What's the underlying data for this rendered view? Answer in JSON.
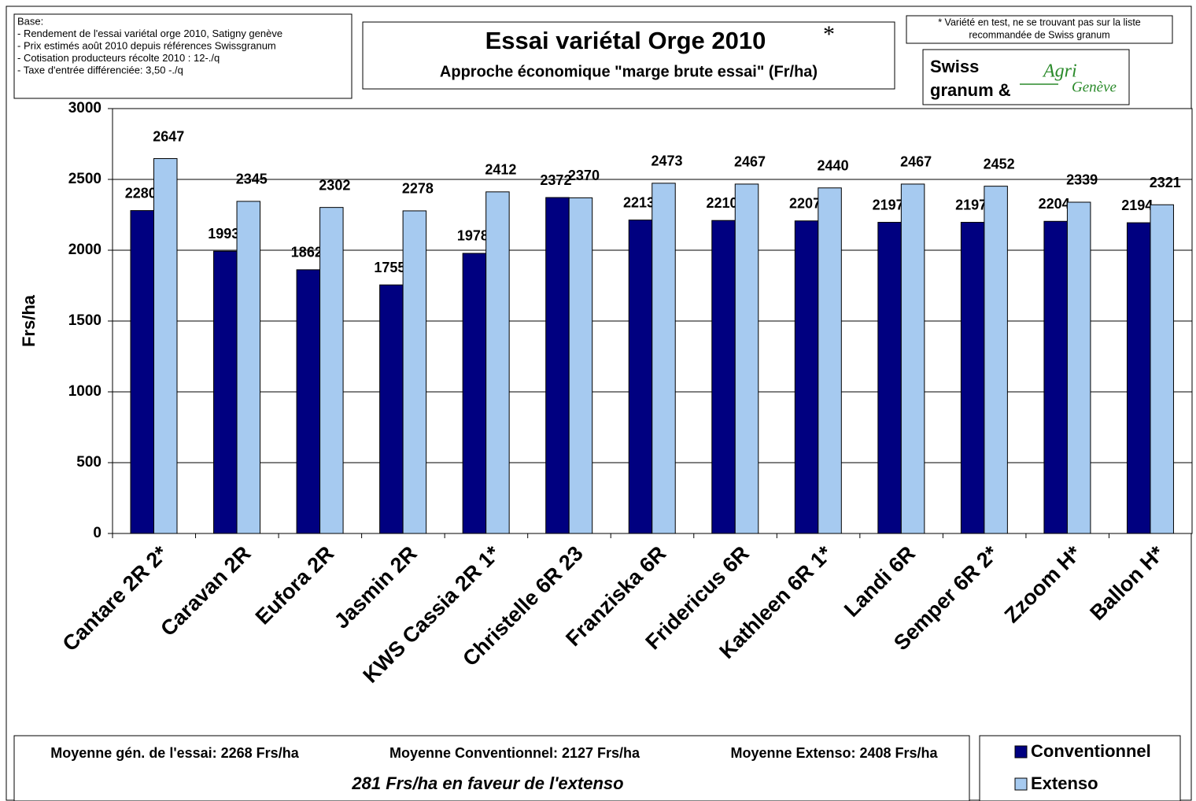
{
  "chart_data": {
    "type": "bar",
    "title": "Essai variétal Orge 2010",
    "title_mark": "*",
    "subtitle": "Approche économique  \"marge brute essai\" (Fr/ha)",
    "y_label": "Frs/ha",
    "base_notes": [
      "Base:",
      "- Rendement de l'essai variétal orge 2010, Satigny genève",
      "- Prix estimés août 2010 depuis références Swissgranum",
      "- Cotisation producteurs récolte 2010 : 12-./q",
      "- Taxe d'entrée différenciée: 3,50 -./q"
    ],
    "top_note": [
      "* Variété en test,  ne se trouvant pas sur la liste",
      "recommandée de Swiss granum"
    ],
    "logo": [
      "Swiss",
      "granum &",
      "Agri",
      "Genève"
    ],
    "footer": [
      "Moyenne gén. de l'essai: 2268 Frs/ha",
      "Moyenne Conventionnel: 2127 Frs/ha",
      "Moyenne Extenso: 2408 Frs/ha",
      "281 Frs/ha en faveur de l'extenso"
    ],
    "categories": [
      "Cantare 2R 2*",
      "Caravan 2R",
      "Eufora 2R",
      "Jasmin 2R",
      "KWS Cassia 2R 1*",
      "Christelle 6R 23",
      "Franziska 6R",
      "Fridericus 6R",
      "Kathleen 6R 1*",
      "Landi 6R",
      "Semper 6R 2*",
      "Zzoom H*",
      "Ballon H*"
    ],
    "series": [
      {
        "name": "Conventionnel",
        "color": "#000080",
        "values": [
          2280,
          1993,
          1862,
          1755,
          1978,
          2372,
          2213,
          2210,
          2207,
          2197,
          2197,
          2204,
          2194
        ]
      },
      {
        "name": "Extenso",
        "color": "#a6caf0",
        "values": [
          2647,
          2345,
          2302,
          2278,
          2412,
          2370,
          2473,
          2467,
          2440,
          2467,
          2452,
          2339,
          2321
        ]
      }
    ],
    "ylim": [
      0,
      3000
    ],
    "yticks": [
      0,
      500,
      1000,
      1500,
      2000,
      2500,
      3000
    ],
    "grid": true
  }
}
